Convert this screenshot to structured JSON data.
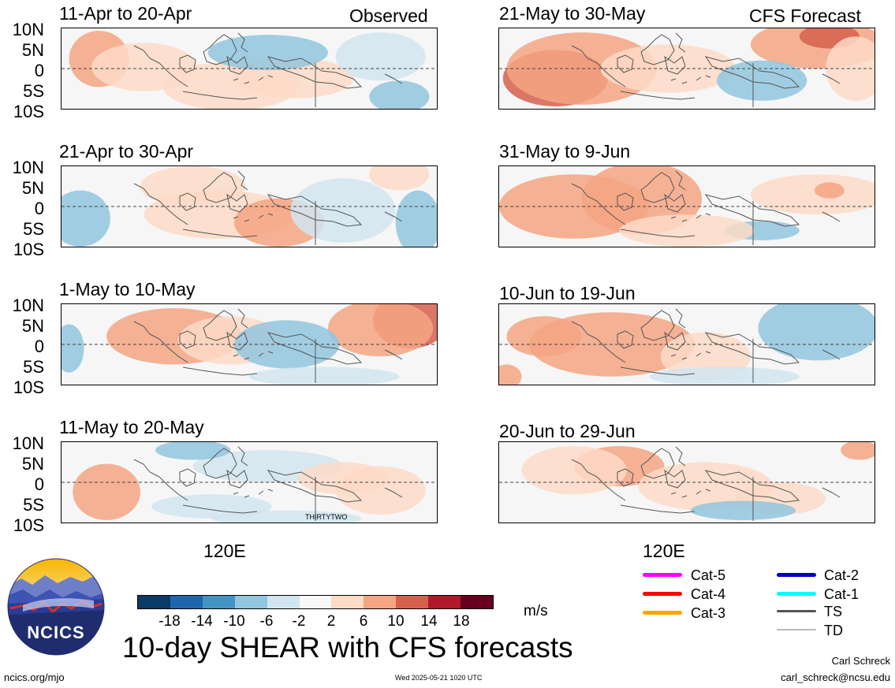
{
  "header": {
    "observed_label": "Observed",
    "forecast_label": "CFS Forecast"
  },
  "panels": {
    "observed": [
      "11-Apr to 20-Apr",
      "21-Apr to 30-Apr",
      "1-May to 10-May",
      "11-May to 20-May"
    ],
    "forecast": [
      "21-May to 30-May",
      "31-May to 9-Jun",
      "10-Jun to 19-Jun",
      "20-Jun to 29-Jun"
    ]
  },
  "axes": {
    "lat_labels": [
      "10N",
      "5N",
      "0",
      "5S",
      "10S"
    ],
    "lon_label": "120E"
  },
  "map_annotation": "THIRTYTWO",
  "colorbar": {
    "labels": [
      "-18",
      "-14",
      "-10",
      "-6",
      "-2",
      "2",
      "6",
      "10",
      "14",
      "18"
    ],
    "units": "m/s",
    "colors": [
      "#0b3a66",
      "#2166ac",
      "#4393c3",
      "#92c5de",
      "#d1e5f0",
      "#f7f7f7",
      "#fddbc7",
      "#f4a582",
      "#d6604d",
      "#b2182b",
      "#67001f"
    ]
  },
  "legend": {
    "items": [
      {
        "label": "Cat-5",
        "color": "#ff00ff"
      },
      {
        "label": "Cat-4",
        "color": "#ff0000"
      },
      {
        "label": "Cat-3",
        "color": "#ffa500"
      },
      {
        "label": "Cat-2",
        "color": "#0000cd"
      },
      {
        "label": "Cat-1",
        "color": "#00ffff"
      },
      {
        "label": "TS",
        "color": "#555555"
      },
      {
        "label": "TD",
        "color": "#bbbbbb"
      }
    ]
  },
  "footer": {
    "main_title": "10-day SHEAR with CFS forecasts",
    "logo_text": "NCICS",
    "url": "ncics.org/mjo",
    "timestamp": "Wed 2025-05-21 1020 UTC",
    "author": "Carl Schreck",
    "email": "carl_schreck@ncsu.edu"
  }
}
